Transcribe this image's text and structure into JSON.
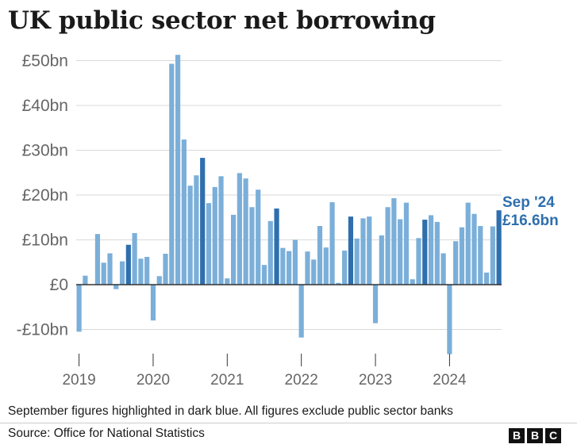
{
  "title": "UK public sector net borrowing",
  "footnote": "September figures highlighted in dark blue. All figures exclude public sector banks",
  "source": "Source: Office for National Statistics",
  "logo": [
    "B",
    "B",
    "C"
  ],
  "colors": {
    "regular": "#7bafd9",
    "september": "#2f6fae",
    "axis": "#333333",
    "grid": "#d9d9d9",
    "callout": "#2f6fae"
  },
  "callout": {
    "line1": "Sep '24",
    "line2": "£16.6bn"
  },
  "chart_data": {
    "type": "bar",
    "title": "UK public sector net borrowing",
    "ylabel": "",
    "xlabel": "",
    "unit": "£bn",
    "ylim": [
      -16,
      52
    ],
    "yticks": [
      {
        "value": 50,
        "label": "£50bn"
      },
      {
        "value": 40,
        "label": "£40bn"
      },
      {
        "value": 30,
        "label": "£30bn"
      },
      {
        "value": 20,
        "label": "£20bn"
      },
      {
        "value": 10,
        "label": "£10bn"
      },
      {
        "value": 0,
        "label": "£0"
      },
      {
        "value": -10,
        "label": "-£10bn"
      }
    ],
    "xticks": [
      {
        "index": 0,
        "label": "2019"
      },
      {
        "index": 12,
        "label": "2020"
      },
      {
        "index": 24,
        "label": "2021"
      },
      {
        "index": 36,
        "label": "2022"
      },
      {
        "index": 48,
        "label": "2023"
      },
      {
        "index": 60,
        "label": "2024"
      }
    ],
    "highlight": "September figures in dark blue",
    "categories": [
      "Jan 2019",
      "Feb 2019",
      "Mar 2019",
      "Apr 2019",
      "May 2019",
      "Jun 2019",
      "Jul 2019",
      "Aug 2019",
      "Sep 2019",
      "Oct 2019",
      "Nov 2019",
      "Dec 2019",
      "Jan 2020",
      "Feb 2020",
      "Mar 2020",
      "Apr 2020",
      "May 2020",
      "Jun 2020",
      "Jul 2020",
      "Aug 2020",
      "Sep 2020",
      "Oct 2020",
      "Nov 2020",
      "Dec 2020",
      "Jan 2021",
      "Feb 2021",
      "Mar 2021",
      "Apr 2021",
      "May 2021",
      "Jun 2021",
      "Jul 2021",
      "Aug 2021",
      "Sep 2021",
      "Oct 2021",
      "Nov 2021",
      "Dec 2021",
      "Jan 2022",
      "Feb 2022",
      "Mar 2022",
      "Apr 2022",
      "May 2022",
      "Jun 2022",
      "Jul 2022",
      "Aug 2022",
      "Sep 2022",
      "Oct 2022",
      "Nov 2022",
      "Dec 2022",
      "Jan 2023",
      "Feb 2023",
      "Mar 2023",
      "Apr 2023",
      "May 2023",
      "Jun 2023",
      "Jul 2023",
      "Aug 2023",
      "Sep 2023",
      "Oct 2023",
      "Nov 2023",
      "Dec 2023",
      "Jan 2024",
      "Feb 2024",
      "Mar 2024",
      "Apr 2024",
      "May 2024",
      "Jun 2024",
      "Jul 2024",
      "Aug 2024",
      "Sep 2024"
    ],
    "values": [
      -10.5,
      2.0,
      null,
      11.3,
      4.9,
      7.0,
      -1.0,
      5.2,
      8.9,
      11.5,
      5.8,
      6.2,
      -8.0,
      1.9,
      6.9,
      49.3,
      51.3,
      32.4,
      22.1,
      24.4,
      28.3,
      18.2,
      21.8,
      24.2,
      1.4,
      15.6,
      24.9,
      23.7,
      17.3,
      21.2,
      4.4,
      14.2,
      17.0,
      8.2,
      7.5,
      10.0,
      -11.8,
      7.4,
      5.6,
      13.1,
      8.3,
      18.4,
      0.4,
      7.6,
      15.2,
      10.3,
      14.8,
      15.2,
      -8.6,
      11.0,
      17.3,
      19.3,
      14.6,
      18.3,
      1.2,
      10.4,
      14.5,
      15.5,
      14.0,
      7.0,
      -15.5,
      9.7,
      12.8,
      18.3,
      15.8,
      13.1,
      2.7,
      13.0,
      16.6
    ],
    "september_indices": [
      8,
      20,
      32,
      44,
      56,
      68
    ]
  }
}
